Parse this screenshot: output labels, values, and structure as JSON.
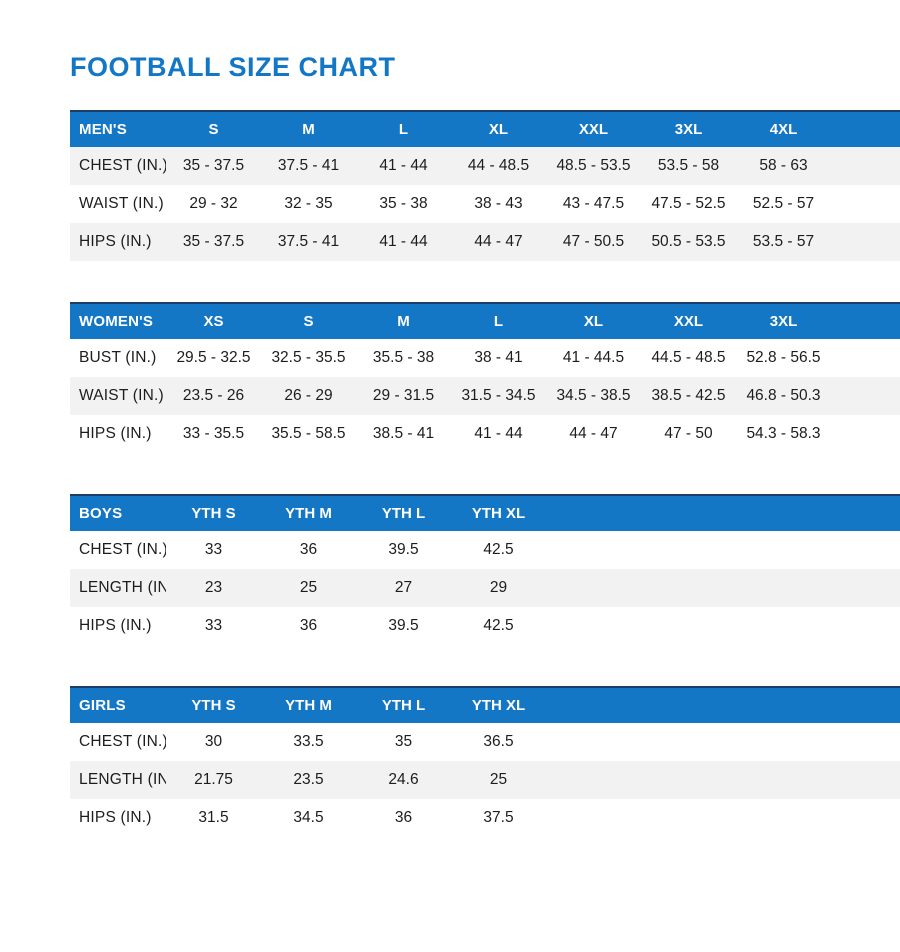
{
  "title": "FOOTBALL SIZE CHART",
  "accent_color": "#1377c6",
  "stripe_color": "#f2f2f3",
  "chart_data": [
    {
      "type": "table",
      "title": "MEN'S",
      "columns": [
        "MEN'S",
        "S",
        "M",
        "L",
        "XL",
        "XXL",
        "3XL",
        "4XL"
      ],
      "rows": [
        [
          "CHEST (IN.)",
          "35 - 37.5",
          "37.5 - 41",
          "41 - 44",
          "44 - 48.5",
          "48.5 - 53.5",
          "53.5 - 58",
          "58 - 63"
        ],
        [
          "WAIST (IN.)",
          "29 - 32",
          "32 - 35",
          "35 - 38",
          "38 - 43",
          "43 - 47.5",
          "47.5 - 52.5",
          "52.5 - 57"
        ],
        [
          "HIPS (IN.)",
          "35 - 37.5",
          "37.5 - 41",
          "41 - 44",
          "44 - 47",
          "47 - 50.5",
          "50.5 - 53.5",
          "53.5 - 57"
        ]
      ]
    },
    {
      "type": "table",
      "title": "WOMEN'S",
      "columns": [
        "WOMEN'S",
        "XS",
        "S",
        "M",
        "L",
        "XL",
        "XXL",
        "3XL"
      ],
      "rows": [
        [
          "BUST (IN.)",
          "29.5 - 32.5",
          "32.5 - 35.5",
          "35.5 - 38",
          "38 - 41",
          "41 - 44.5",
          "44.5 - 48.5",
          "52.8 - 56.5"
        ],
        [
          "WAIST (IN.)",
          "23.5 - 26",
          "26 - 29",
          "29 - 31.5",
          "31.5 - 34.5",
          "34.5 - 38.5",
          "38.5 - 42.5",
          "46.8 - 50.3"
        ],
        [
          "HIPS (IN.)",
          "33 - 35.5",
          "35.5 - 58.5",
          "38.5 - 41",
          "41 - 44",
          "44 - 47",
          "47 - 50",
          "54.3 - 58.3"
        ]
      ]
    },
    {
      "type": "table",
      "title": "BOYS",
      "columns": [
        "BOYS",
        "YTH S",
        "YTH M",
        "YTH L",
        "YTH XL"
      ],
      "rows": [
        [
          "CHEST (IN.)",
          "33",
          "36",
          "39.5",
          "42.5"
        ],
        [
          "LENGTH (IN.)",
          "23",
          "25",
          "27",
          "29"
        ],
        [
          "HIPS (IN.)",
          "33",
          "36",
          "39.5",
          "42.5"
        ]
      ]
    },
    {
      "type": "table",
      "title": "GIRLS",
      "columns": [
        "GIRLS",
        "YTH S",
        "YTH M",
        "YTH L",
        "YTH XL"
      ],
      "rows": [
        [
          "CHEST (IN.)",
          "30",
          "33.5",
          "35",
          "36.5"
        ],
        [
          "LENGTH (IN.)",
          "21.75",
          "23.5",
          "24.6",
          "25"
        ],
        [
          "HIPS (IN.)",
          "31.5",
          "34.5",
          "36",
          "37.5"
        ]
      ]
    }
  ]
}
